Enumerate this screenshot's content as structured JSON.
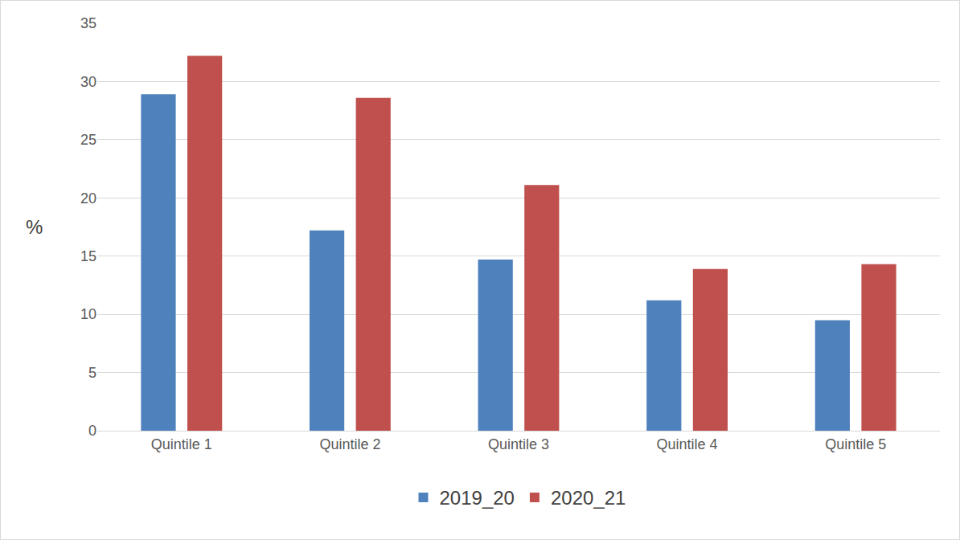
{
  "chart_data": {
    "type": "bar",
    "ylabel": "%",
    "categories": [
      "Quintile 1",
      "Quintile 2",
      "Quintile 3",
      "Quintile 4",
      "Quintile 5"
    ],
    "series": [
      {
        "name": "2019_20",
        "color": "#4f81bd",
        "values": [
          28.9,
          17.2,
          14.7,
          11.2,
          9.5
        ]
      },
      {
        "name": "2020_21",
        "color": "#c0504d",
        "values": [
          32.2,
          28.6,
          21.1,
          13.9,
          14.3
        ]
      }
    ],
    "ylim": [
      0,
      35
    ],
    "yticks": [
      0,
      5,
      10,
      15,
      20,
      25,
      30,
      35
    ],
    "grid": true,
    "legend": "bottom"
  }
}
